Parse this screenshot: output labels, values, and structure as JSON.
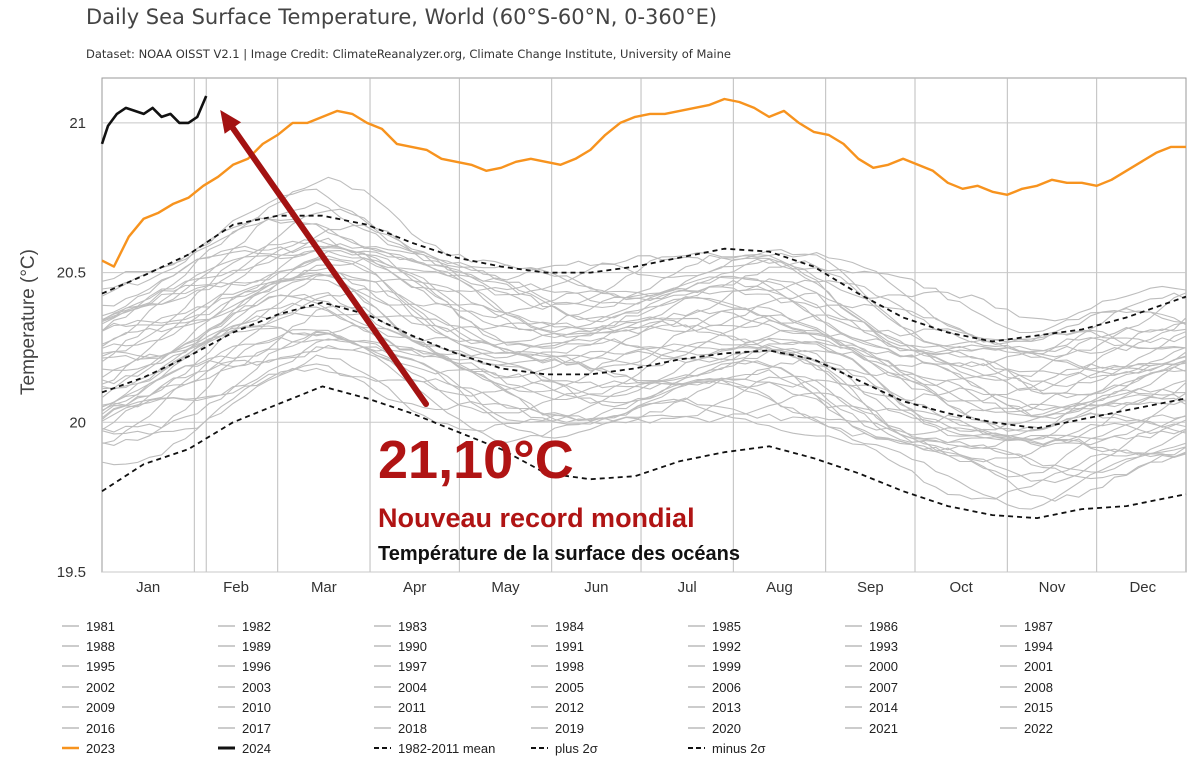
{
  "chart_data": {
    "type": "line",
    "title": "Daily Sea Surface Temperature, World (60°S-60°N, 0-360°E)",
    "subtitle": "Dataset: NOAA OISST V2.1 | Image Credit: ClimateReanalyzer.org, Climate Change Institute, University of Maine",
    "ylabel": "Temperature (°C)",
    "xlabel": "",
    "ylim": [
      19.5,
      21.15
    ],
    "yticks": [
      "19.5",
      "20",
      "20.5",
      "21"
    ],
    "yticks_values": [
      19.5,
      20,
      20.5,
      21
    ],
    "months": [
      "Jan",
      "Feb",
      "Mar",
      "Apr",
      "May",
      "Jun",
      "Jul",
      "Aug",
      "Sep",
      "Oct",
      "Nov",
      "Dec"
    ],
    "grid": true,
    "legend_position": "bottom",
    "x_unit": "day of year",
    "series": [
      {
        "name": "2023",
        "color": "#f7931e",
        "width": 2.4,
        "dash": "",
        "x": [
          1,
          5,
          10,
          15,
          20,
          25,
          30,
          35,
          40,
          45,
          50,
          55,
          60,
          65,
          70,
          75,
          80,
          85,
          90,
          95,
          100,
          105,
          110,
          115,
          120,
          125,
          130,
          135,
          140,
          145,
          150,
          155,
          160,
          165,
          170,
          175,
          180,
          185,
          190,
          195,
          200,
          205,
          210,
          215,
          220,
          225,
          230,
          235,
          240,
          245,
          250,
          255,
          260,
          265,
          270,
          275,
          280,
          285,
          290,
          295,
          300,
          305,
          310,
          315,
          320,
          325,
          330,
          335,
          340,
          345,
          350,
          355,
          360,
          365
        ],
        "values": [
          20.54,
          20.52,
          20.62,
          20.68,
          20.7,
          20.73,
          20.75,
          20.79,
          20.82,
          20.86,
          20.88,
          20.93,
          20.96,
          21.0,
          21.0,
          21.02,
          21.04,
          21.03,
          21.0,
          20.98,
          20.93,
          20.92,
          20.91,
          20.88,
          20.87,
          20.86,
          20.84,
          20.85,
          20.87,
          20.88,
          20.87,
          20.86,
          20.88,
          20.91,
          20.96,
          21.0,
          21.02,
          21.03,
          21.03,
          21.04,
          21.05,
          21.06,
          21.08,
          21.07,
          21.05,
          21.02,
          21.04,
          21.0,
          20.97,
          20.96,
          20.93,
          20.88,
          20.85,
          20.86,
          20.88,
          20.86,
          20.84,
          20.8,
          20.78,
          20.79,
          20.77,
          20.76,
          20.78,
          20.79,
          20.81,
          20.8,
          20.8,
          20.79,
          20.81,
          20.84,
          20.87,
          20.9,
          20.92,
          20.92
        ]
      },
      {
        "name": "2024",
        "color": "#111111",
        "width": 2.6,
        "dash": "",
        "x": [
          1,
          3,
          6,
          9,
          12,
          15,
          18,
          21,
          24,
          27,
          30,
          33,
          36
        ],
        "values": [
          20.93,
          20.99,
          21.03,
          21.05,
          21.04,
          21.03,
          21.05,
          21.02,
          21.03,
          21.0,
          21.0,
          21.02,
          21.09
        ]
      },
      {
        "name": "1982-2011 mean",
        "color": "#111111",
        "width": 1.8,
        "dash": "5,4",
        "x": [
          1,
          15,
          30,
          45,
          60,
          75,
          90,
          105,
          120,
          135,
          150,
          165,
          180,
          195,
          210,
          225,
          240,
          255,
          270,
          285,
          300,
          315,
          330,
          345,
          365
        ],
        "values": [
          20.1,
          20.15,
          20.22,
          20.3,
          20.36,
          20.4,
          20.36,
          20.29,
          20.23,
          20.18,
          20.16,
          20.16,
          20.18,
          20.21,
          20.23,
          20.24,
          20.21,
          20.14,
          20.07,
          20.03,
          20.0,
          19.98,
          20.01,
          20.04,
          20.08
        ]
      },
      {
        "name": "plus 2σ",
        "color": "#111111",
        "width": 1.8,
        "dash": "5,4",
        "x": [
          1,
          15,
          30,
          45,
          60,
          75,
          90,
          105,
          120,
          135,
          150,
          165,
          180,
          195,
          210,
          225,
          240,
          255,
          270,
          285,
          300,
          315,
          330,
          345,
          365
        ],
        "values": [
          20.43,
          20.49,
          20.56,
          20.66,
          20.69,
          20.69,
          20.66,
          20.6,
          20.55,
          20.52,
          20.5,
          20.5,
          20.52,
          20.55,
          20.58,
          20.57,
          20.52,
          20.43,
          20.35,
          20.3,
          20.27,
          20.29,
          20.31,
          20.35,
          20.42
        ]
      },
      {
        "name": "minus 2σ",
        "color": "#111111",
        "width": 1.8,
        "dash": "5,4",
        "x": [
          1,
          15,
          30,
          45,
          60,
          75,
          90,
          105,
          120,
          135,
          150,
          165,
          180,
          195,
          210,
          225,
          240,
          255,
          270,
          285,
          300,
          315,
          330,
          345,
          365
        ],
        "values": [
          19.77,
          19.86,
          19.91,
          20.0,
          20.06,
          20.12,
          20.08,
          20.03,
          19.97,
          19.91,
          19.83,
          19.81,
          19.82,
          19.87,
          19.9,
          19.92,
          19.88,
          19.83,
          19.77,
          19.72,
          19.69,
          19.68,
          19.71,
          19.72,
          19.76
        ]
      }
    ],
    "legend": [
      "1981",
      "1982",
      "1983",
      "1984",
      "1985",
      "1986",
      "1987",
      "1988",
      "1989",
      "1990",
      "1991",
      "1992",
      "1993",
      "1994",
      "1995",
      "1996",
      "1997",
      "1998",
      "1999",
      "2000",
      "2001",
      "2002",
      "2003",
      "2004",
      "2005",
      "2006",
      "2007",
      "2008",
      "2009",
      "2010",
      "2011",
      "2012",
      "2013",
      "2014",
      "2015",
      "2016",
      "2017",
      "2018",
      "2019",
      "2020",
      "2021",
      "2022",
      "2023",
      "2024",
      "1982-2011 mean",
      "plus 2σ",
      "minus 2σ"
    ],
    "legend_styles": {
      "grey": "#bbbbbb",
      "2023": "#f7931e",
      "2024": "#111111",
      "dashed": "#111111"
    },
    "annotation": {
      "value": "21,10°C",
      "headline": "Nouveau record mondial",
      "caption": "Température de la surface des océans",
      "color": "#b01414",
      "arrow_color": "#a31212",
      "points_to": {
        "x": 36,
        "y": 21.09
      }
    }
  }
}
